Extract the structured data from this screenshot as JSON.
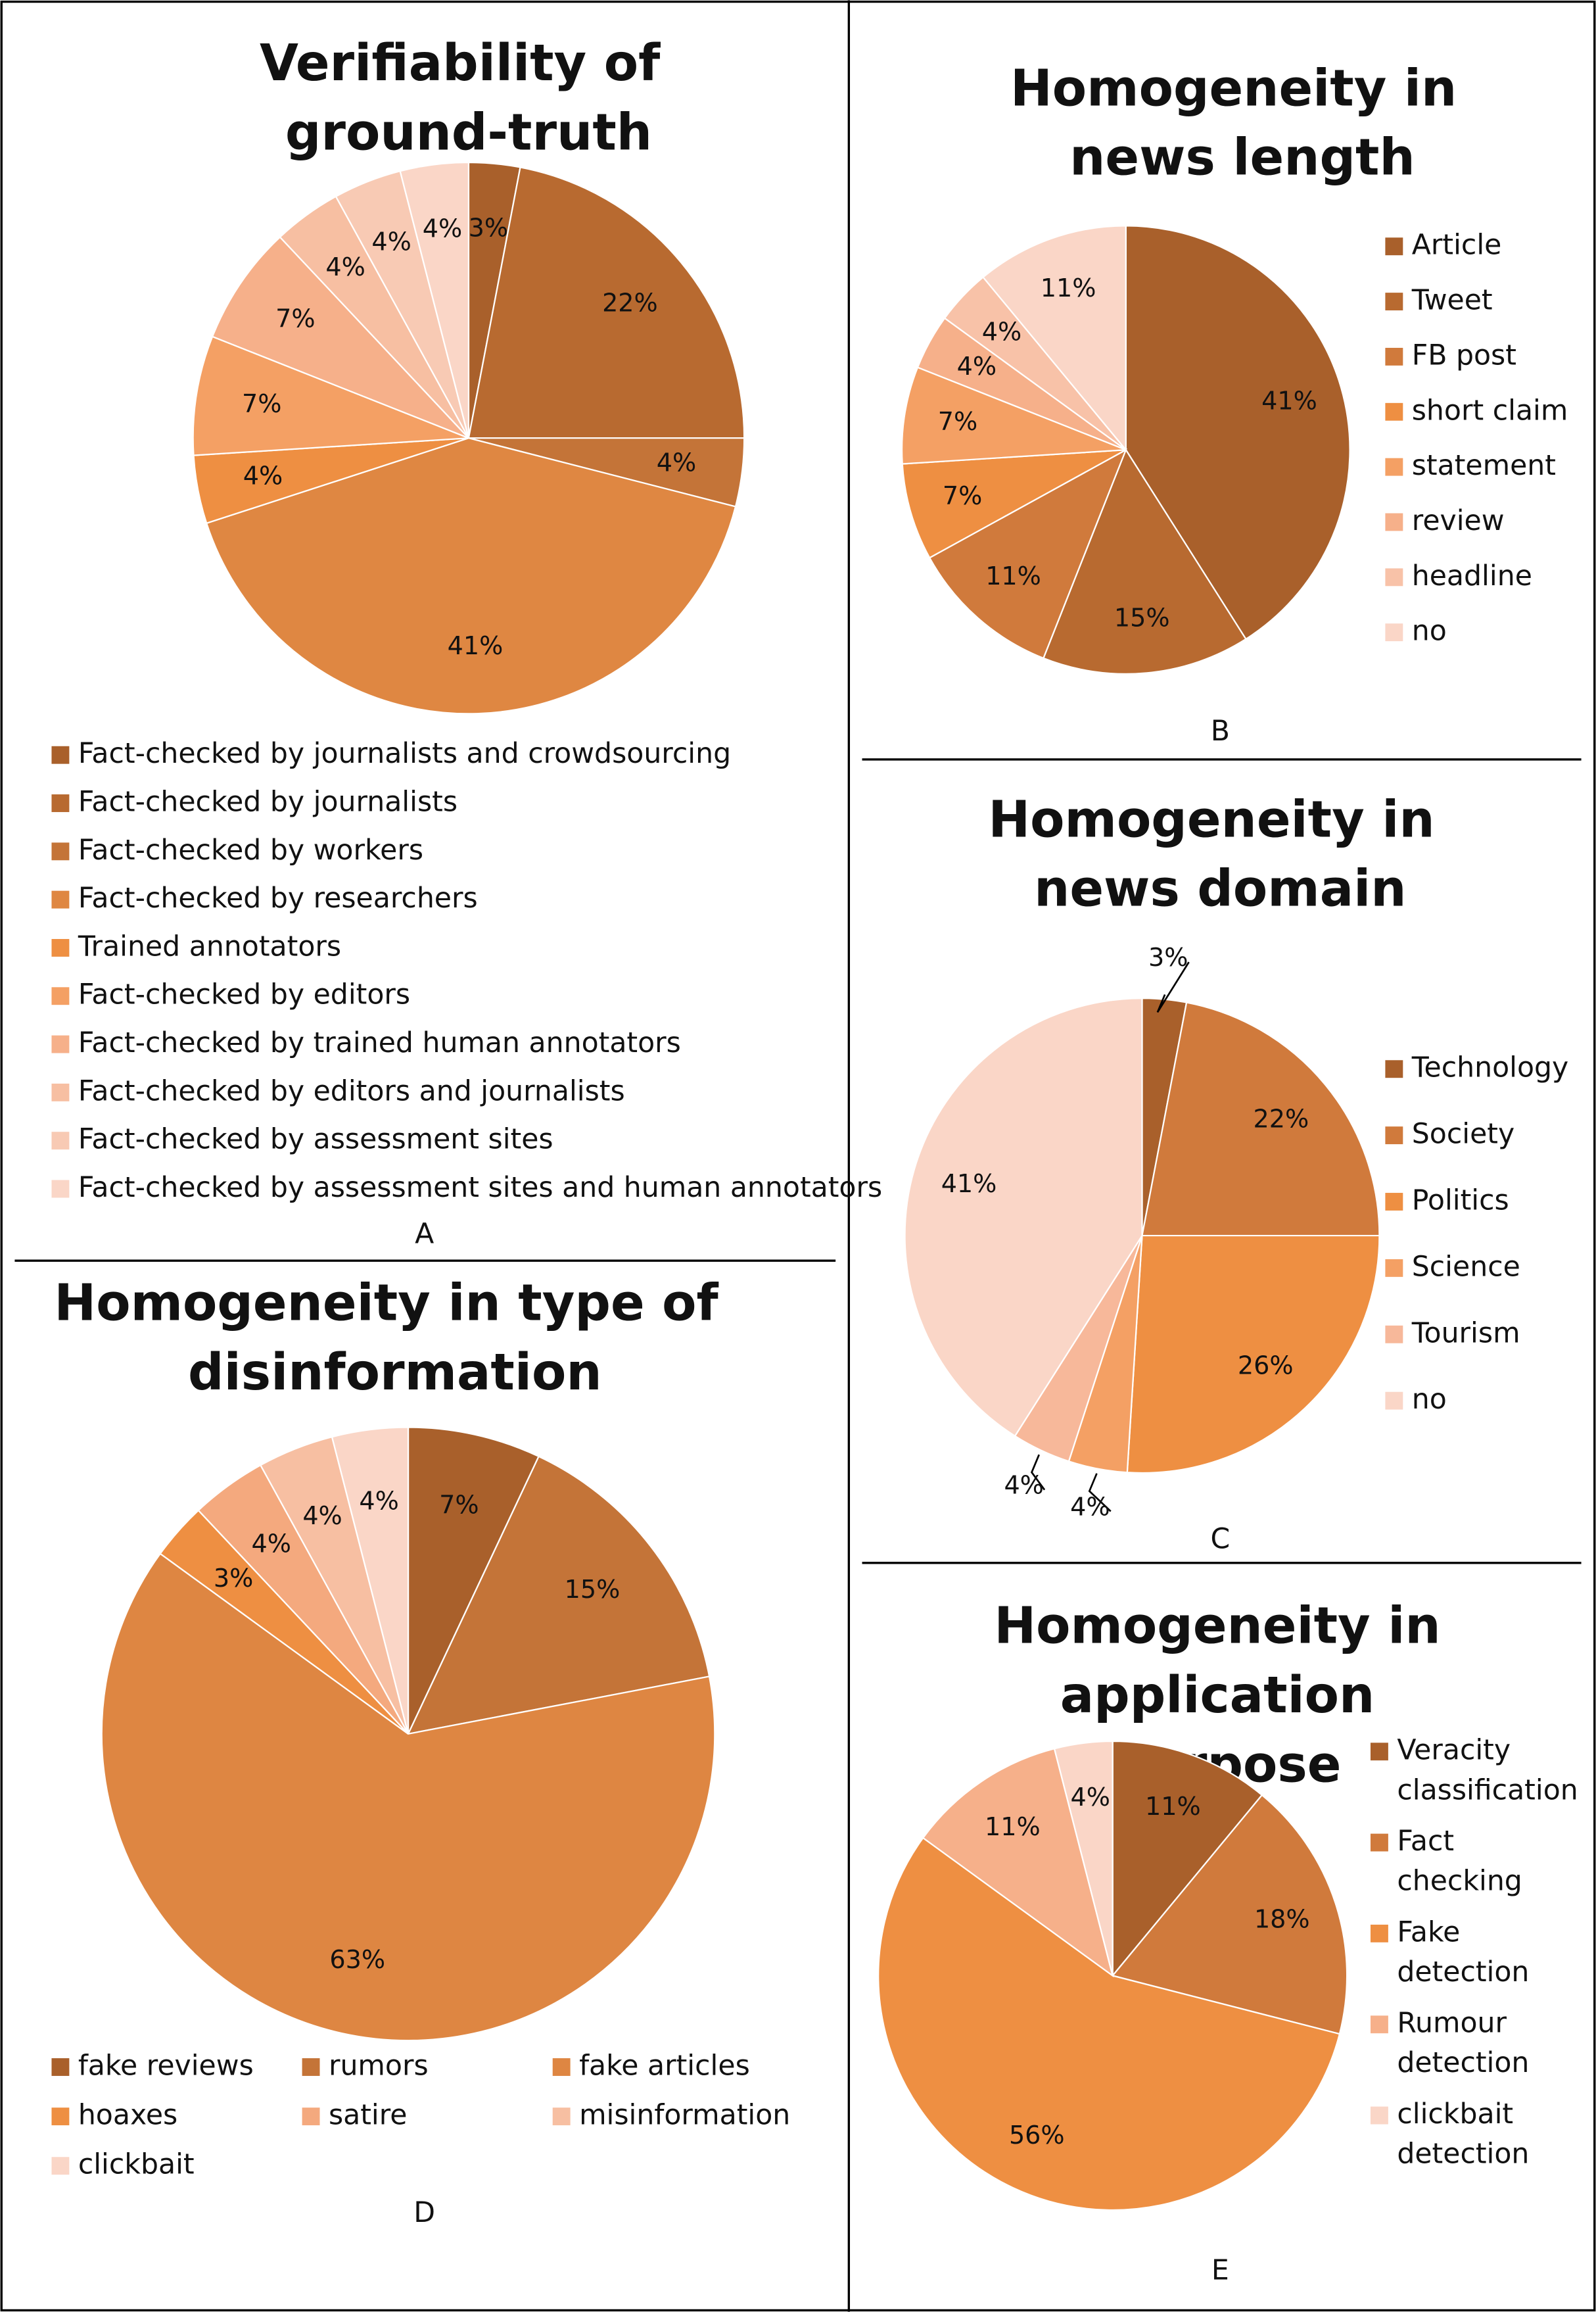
{
  "chart_data": [
    {
      "type": "pie",
      "title": "Verifiability of ground-truth",
      "panel": "A",
      "categories": [
        "Fact-checked by journalists and crowdsourcing",
        "Fact-checked by journalists",
        "Fact-checked by workers",
        "Fact-checked by researchers",
        "Trained annotators",
        "Fact-checked by editors",
        "Fact-checked by trained human annotators",
        "Fact-checked by editors and journalists",
        "Fact-checked by assessment sites",
        "Fact-checked by assessment sites and human annotators"
      ],
      "values": [
        3,
        22,
        4,
        41,
        4,
        7,
        7,
        4,
        4,
        4
      ],
      "value_labels": [
        "3%",
        "22%",
        "4%",
        "41%",
        "4%",
        "7%",
        "7%",
        "4%",
        "4%",
        "4%"
      ],
      "colors": [
        "#a9602b",
        "#b86a30",
        "#c47438",
        "#df8742",
        "#ee8f42",
        "#f4a064",
        "#f6b08a",
        "#f7bfa2",
        "#f8cab4",
        "#fad6c7"
      ]
    },
    {
      "type": "pie",
      "title": "Homogeneity in news length",
      "panel": "B",
      "categories": [
        "Article",
        "Tweet",
        "FB post",
        "short claim",
        "statement",
        "review",
        "headline",
        "no"
      ],
      "values": [
        41,
        15,
        11,
        7,
        7,
        4,
        4,
        11
      ],
      "value_labels": [
        "41%",
        "15%",
        "11%",
        "7%",
        "7%",
        "4%",
        "4%",
        "11%"
      ],
      "colors": [
        "#a9602b",
        "#b86a30",
        "#d07a3c",
        "#ee8f42",
        "#f4a064",
        "#f6b08a",
        "#f8c2a8",
        "#fad6c7"
      ]
    },
    {
      "type": "pie",
      "title": "Homogeneity in news domain",
      "panel": "C",
      "categories": [
        "Technology",
        "Society",
        "Politics",
        "Science",
        "Tourism",
        "no"
      ],
      "values": [
        3,
        22,
        26,
        4,
        4,
        41
      ],
      "value_labels": [
        "3%",
        "22%",
        "26%",
        "4%",
        "4%",
        "41%"
      ],
      "colors": [
        "#a9602b",
        "#d07a3c",
        "#ee8f42",
        "#f4a064",
        "#f7b89a",
        "#fad6c7"
      ]
    },
    {
      "type": "pie",
      "title": "Homogeneity in type of disinformation",
      "panel": "D",
      "categories": [
        "fake reviews",
        "rumors",
        "fake articles",
        "hoaxes",
        "satire",
        "misinformation",
        "clickbait"
      ],
      "values": [
        7,
        15,
        63,
        3,
        4,
        4,
        4
      ],
      "value_labels": [
        "7%",
        "15%",
        "63%",
        "3%",
        "4%",
        "4%",
        "4%"
      ],
      "colors": [
        "#a9602b",
        "#c47438",
        "#de8642",
        "#ee8f42",
        "#f4a97e",
        "#f7bfa2",
        "#fad6c7"
      ]
    },
    {
      "type": "pie",
      "title": "Homogeneity in application purpose",
      "panel": "E",
      "categories": [
        "Veracity classification",
        "Fact checking",
        "Fake detection",
        "Rumour detection",
        "clickbait detection"
      ],
      "values": [
        11,
        18,
        56,
        11,
        4
      ],
      "value_labels": [
        "11%",
        "18%",
        "56%",
        "11%",
        "4%"
      ],
      "colors": [
        "#a9602b",
        "#d07a3c",
        "#ee8f42",
        "#f6b08a",
        "#fad6c7"
      ]
    }
  ]
}
